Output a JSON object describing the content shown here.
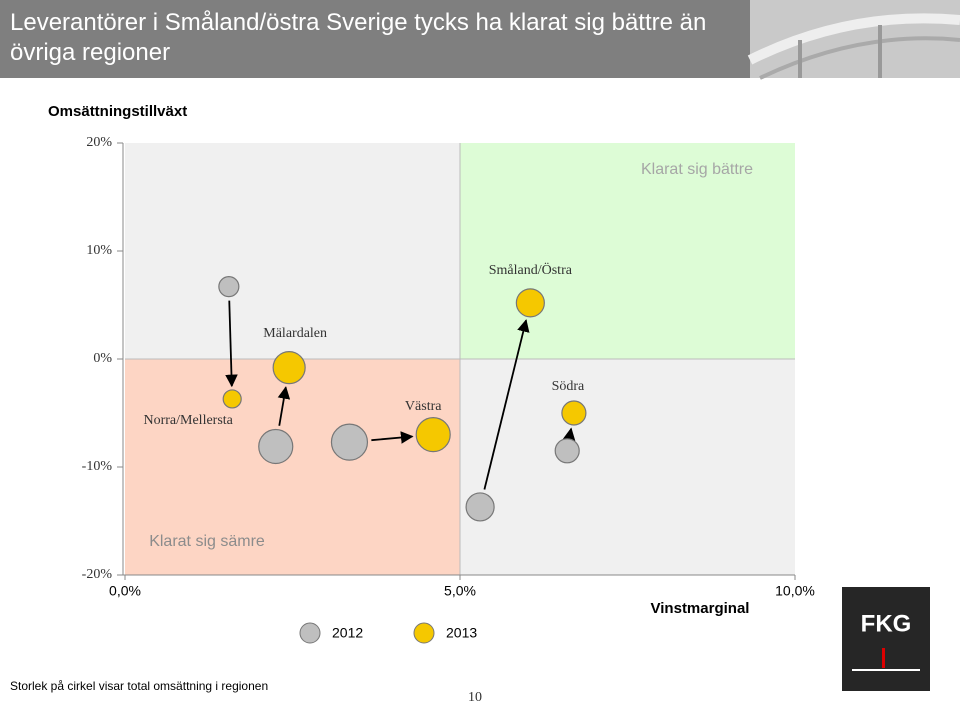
{
  "header": {
    "title": "Leverantörer i Småland/östra Sverige tycks ha klarat sig bättre än övriga regioner"
  },
  "chart_data": {
    "type": "bubble",
    "y_label": "Omsättningstillväxt",
    "x_label": "Vinstmarginal",
    "categories": [
      "Norra/Mellersta",
      "Mälardalen",
      "Västra",
      "Småland/Östra",
      "Södra"
    ],
    "series": [
      {
        "name": "2012",
        "color": "#bfbfbf",
        "x": [
          1.55,
          2.25,
          3.35,
          5.3,
          6.6
        ],
        "values": [
          6.7,
          -8.1,
          -7.7,
          -13.7,
          -8.5
        ],
        "sizes": [
          10,
          17,
          18,
          14,
          12
        ]
      },
      {
        "name": "2013",
        "color": "#f5c800",
        "x": [
          1.6,
          2.45,
          4.6,
          6.05,
          6.7
        ],
        "values": [
          -3.7,
          -0.8,
          -7.0,
          5.2,
          -5.0
        ],
        "sizes": [
          9,
          16,
          17,
          14,
          12
        ]
      }
    ],
    "xlim": [
      0,
      10
    ],
    "ylim": [
      -20,
      20
    ],
    "xticks": [
      {
        "value": 0,
        "label": "0,0%"
      },
      {
        "value": 5,
        "label": "5,0%"
      },
      {
        "value": 10,
        "label": "10,0%"
      }
    ],
    "yticks": [
      {
        "value": 20,
        "label": "20%"
      },
      {
        "value": 10,
        "label": "10%"
      },
      {
        "value": 0,
        "label": "0%"
      },
      {
        "value": -10,
        "label": "-10%"
      },
      {
        "value": -20,
        "label": "-20%"
      }
    ],
    "annotations": [
      "Klarat sig bättre",
      "Klarat sig sämre"
    ]
  },
  "footnote": "Storlek på cirkel visar total omsättning i regionen",
  "page_number": "10",
  "logo": "FKG"
}
